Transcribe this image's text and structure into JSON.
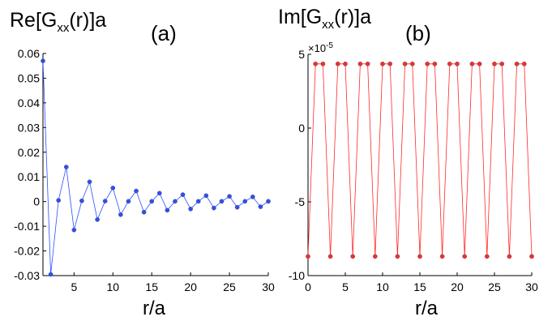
{
  "chart_data": [
    {
      "type": "line",
      "label": "(a)",
      "ylabel": {
        "prefix": "Re[G",
        "subscript": "xx",
        "suffix": "(r)]a"
      },
      "xlabel": "r/a",
      "xlim": [
        1,
        30
      ],
      "ylim": [
        -0.03,
        0.06
      ],
      "xticks": [
        5,
        10,
        15,
        20,
        25,
        30
      ],
      "xtick_labels": [
        "5",
        "10",
        "15",
        "20",
        "25",
        "30"
      ],
      "yticks": [
        -0.03,
        -0.02,
        -0.01,
        0,
        0.01,
        0.02,
        0.03,
        0.04,
        0.05,
        0.06
      ],
      "ytick_labels": [
        "-0.03",
        "-0.02",
        "-0.01",
        "0",
        "0.01",
        "0.02",
        "0.03",
        "0.04",
        "0.05",
        "0.06"
      ],
      "grid": false,
      "color": "#2a4fff",
      "x": [
        1,
        2,
        3,
        4,
        5,
        6,
        7,
        8,
        9,
        10,
        11,
        12,
        13,
        14,
        15,
        16,
        17,
        18,
        19,
        20,
        21,
        22,
        23,
        24,
        25,
        26,
        27,
        28,
        29,
        30
      ],
      "y": [
        0.057,
        -0.0295,
        0.0005,
        0.014,
        -0.0115,
        0.0003,
        0.008,
        -0.0073,
        0.0002,
        0.0055,
        -0.0053,
        0.0001,
        0.0043,
        -0.0043,
        0.0001,
        0.0034,
        -0.0035,
        0.0001,
        0.0028,
        -0.003,
        0.0001,
        0.0024,
        -0.0026,
        0.0001,
        0.0021,
        -0.0023,
        0.0001,
        0.0019,
        -0.0021,
        0.0001
      ]
    },
    {
      "type": "line",
      "label": "(b)",
      "ylabel": {
        "prefix": "Im[G",
        "subscript": "xx",
        "suffix": "(r)]a"
      },
      "xlabel": "r/a",
      "xlim": [
        0,
        30
      ],
      "ylim": [
        -10,
        5
      ],
      "scale_exponent": {
        "base": "×10",
        "power": "-5"
      },
      "xticks": [
        0,
        5,
        10,
        15,
        20,
        25,
        30
      ],
      "xtick_labels": [
        "0",
        "5",
        "10",
        "15",
        "20",
        "25",
        "30"
      ],
      "yticks": [
        -10,
        -5,
        0,
        5
      ],
      "ytick_labels": [
        "-10",
        "-5",
        "0",
        "5"
      ],
      "grid": false,
      "color": "#ff2a2a",
      "x": [
        0,
        1,
        2,
        3,
        4,
        5,
        6,
        7,
        8,
        9,
        10,
        11,
        12,
        13,
        14,
        15,
        16,
        17,
        18,
        19,
        20,
        21,
        22,
        23,
        24,
        25,
        26,
        27,
        28,
        29,
        30
      ],
      "y": [
        -8.7,
        4.35,
        4.35,
        -8.7,
        4.35,
        4.35,
        -8.7,
        4.35,
        4.35,
        -8.7,
        4.35,
        4.35,
        -8.7,
        4.35,
        4.35,
        -8.7,
        4.35,
        4.35,
        -8.7,
        4.35,
        4.35,
        -8.7,
        4.35,
        4.35,
        -8.7,
        4.35,
        4.35,
        -8.7,
        4.35,
        4.35,
        -8.7
      ]
    }
  ]
}
